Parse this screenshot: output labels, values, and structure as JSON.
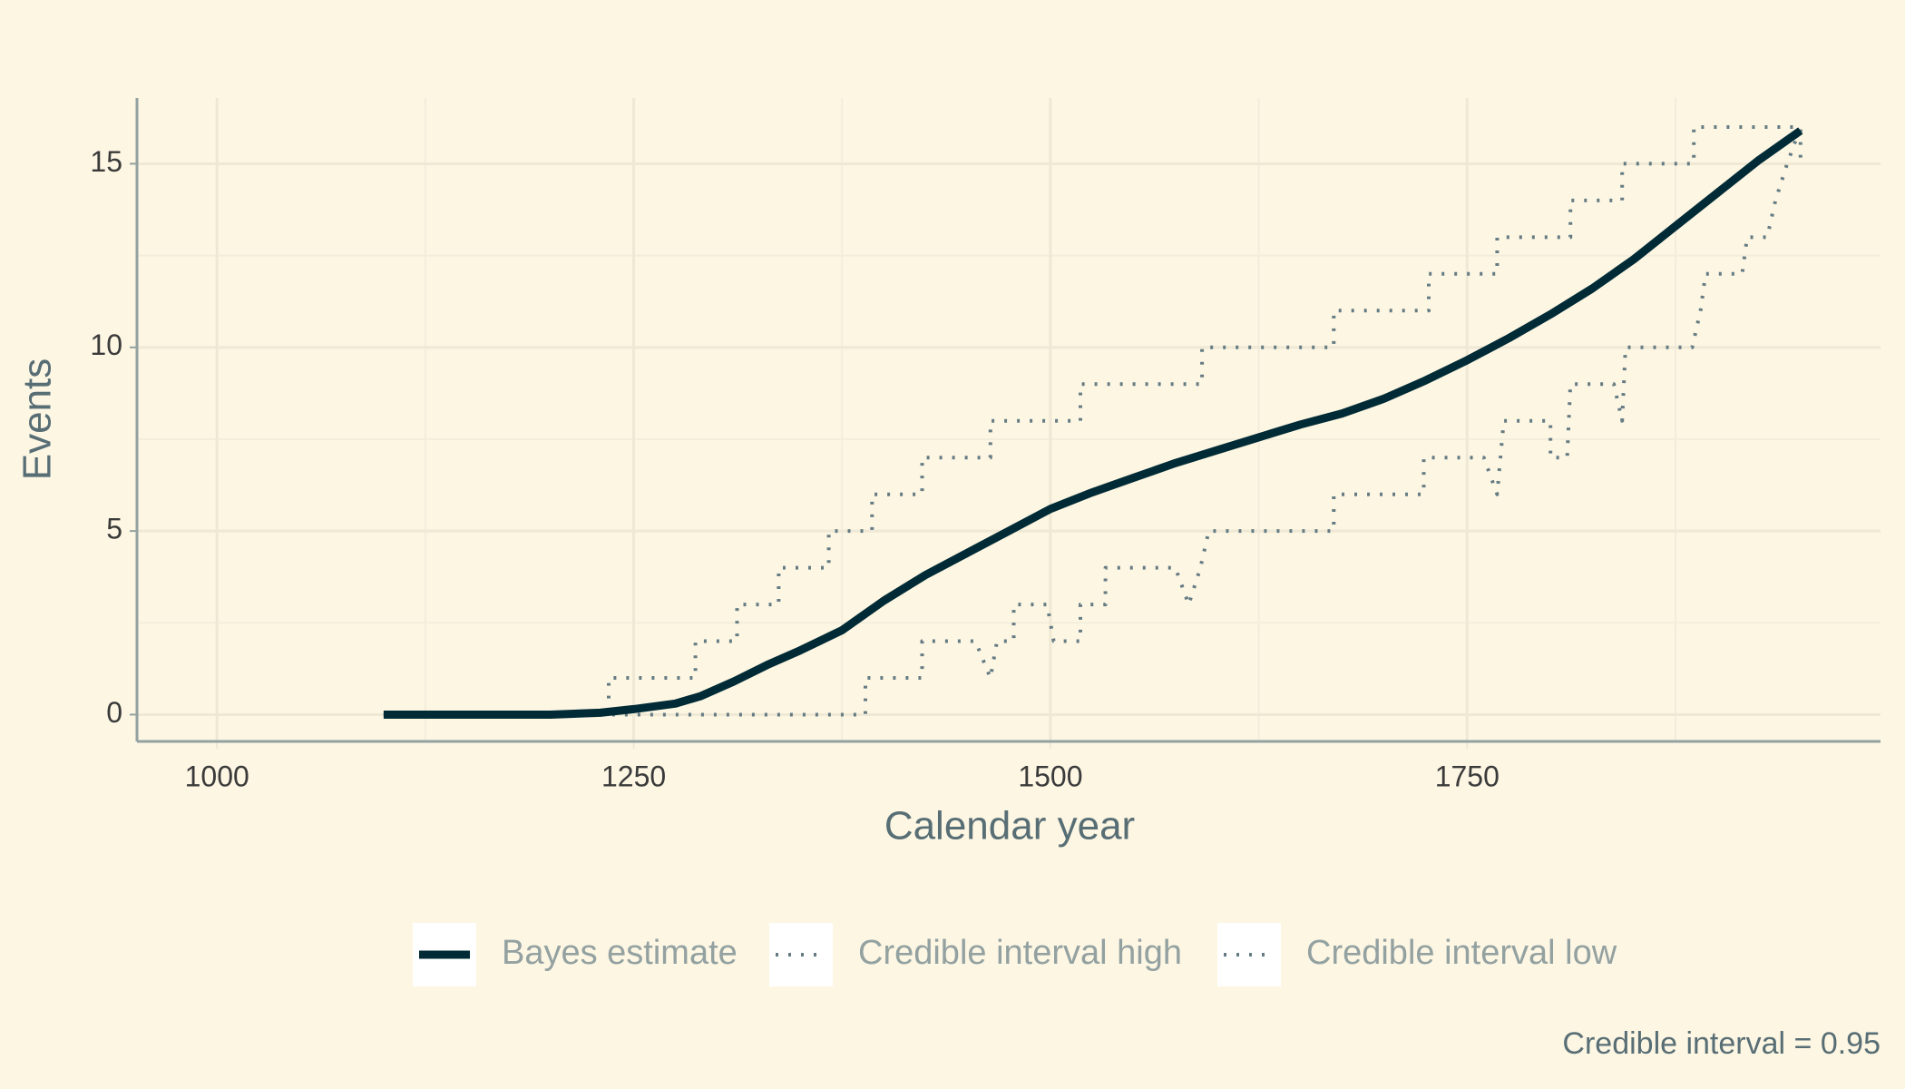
{
  "chart_data": {
    "type": "line",
    "xlabel": "Calendar year",
    "ylabel": "Events",
    "caption": "Credible interval = 0.95",
    "xlim": [
      952,
      1998
    ],
    "ylim": [
      -0.73,
      16.79
    ],
    "xticks": [
      1000,
      1250,
      1500,
      1750
    ],
    "yticks": [
      0,
      5,
      10,
      15
    ],
    "xticks_minor": [
      1125,
      1375,
      1625,
      1875
    ],
    "yticks_minor": [
      2.5,
      7.5,
      12.5
    ],
    "grid": true,
    "legend": "bottom",
    "series": [
      {
        "name": "Bayes estimate",
        "color": "#002b36",
        "style": "solid",
        "x": [
          1100,
          1200,
          1230,
          1250,
          1275,
          1290,
          1310,
          1330,
          1350,
          1375,
          1400,
          1425,
          1450,
          1475,
          1500,
          1525,
          1550,
          1575,
          1600,
          1625,
          1650,
          1675,
          1700,
          1725,
          1750,
          1775,
          1800,
          1825,
          1850,
          1875,
          1900,
          1925,
          1950
        ],
        "values": [
          0,
          0,
          0.05,
          0.15,
          0.3,
          0.5,
          0.9,
          1.35,
          1.75,
          2.3,
          3.1,
          3.8,
          4.4,
          5.0,
          5.6,
          6.05,
          6.45,
          6.85,
          7.2,
          7.55,
          7.9,
          8.2,
          8.6,
          9.1,
          9.65,
          10.25,
          10.9,
          11.6,
          12.4,
          13.3,
          14.2,
          15.1,
          15.9
        ]
      },
      {
        "name": "Credible interval high",
        "color": "#657b83",
        "style": "dotted",
        "x": [
          1100,
          1235,
          1235,
          1287,
          1287,
          1312,
          1312,
          1337,
          1337,
          1367,
          1367,
          1393,
          1393,
          1423,
          1423,
          1464,
          1464,
          1518,
          1518,
          1591,
          1591,
          1670,
          1670,
          1727,
          1727,
          1768,
          1768,
          1812,
          1812,
          1843,
          1843,
          1886,
          1886,
          1950,
          1950
        ],
        "values": [
          0,
          0,
          1,
          1,
          2,
          2,
          3,
          3,
          4,
          4,
          5,
          5,
          6,
          6,
          7,
          7,
          8,
          8,
          9,
          9,
          10,
          10,
          11,
          11,
          12,
          12,
          13,
          13,
          14,
          14,
          15,
          15,
          16,
          16,
          15
        ]
      },
      {
        "name": "Credible interval low",
        "color": "#657b83",
        "style": "dotted",
        "x": [
          1100,
          1389,
          1389,
          1423,
          1423,
          1455,
          1464,
          1468,
          1478,
          1478,
          1498,
          1502,
          1518,
          1518,
          1533,
          1533,
          1575,
          1583,
          1590,
          1595,
          1670,
          1670,
          1724,
          1724,
          1760,
          1768,
          1772,
          1800,
          1800,
          1810,
          1812,
          1838,
          1843,
          1845,
          1885,
          1890,
          1893,
          1915,
          1918,
          1930,
          1935,
          1942,
          1950
        ],
        "values": [
          0,
          0,
          1,
          1,
          2,
          2,
          1,
          2,
          2,
          3,
          3,
          2,
          2,
          3,
          3,
          4,
          4,
          3,
          4,
          5,
          5,
          6,
          6,
          7,
          7,
          6,
          8,
          8,
          7,
          7,
          9,
          9,
          8,
          10,
          10,
          11,
          12,
          12,
          13,
          13,
          14,
          15,
          16
        ]
      }
    ]
  }
}
